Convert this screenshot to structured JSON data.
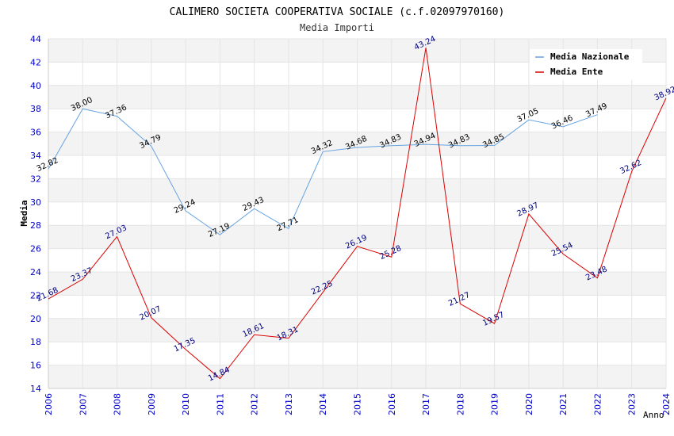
{
  "chart_data": {
    "type": "line",
    "title": "CALIMERO SOCIETA COOPERATIVA SOCIALE (c.f.02097970160)",
    "subtitle": "Media Importi",
    "xlabel": "Anno",
    "ylabel": "Media",
    "ylim": [
      14,
      44
    ],
    "yticks": [
      14,
      16,
      18,
      20,
      22,
      24,
      26,
      28,
      30,
      32,
      34,
      36,
      38,
      40,
      42,
      44
    ],
    "x": [
      "2006",
      "2007",
      "2008",
      "2009",
      "2010",
      "2011",
      "2012",
      "2013",
      "2014",
      "2015",
      "2016",
      "2017",
      "2018",
      "2019",
      "2020",
      "2021",
      "2022",
      "2023",
      "2024"
    ],
    "grid": "horizontal-bands",
    "legend_position": "top-right",
    "series": [
      {
        "name": "Media Nazionale",
        "color": "#66a3e0",
        "values": [
          32.82,
          38.0,
          37.36,
          34.79,
          29.24,
          27.19,
          29.43,
          27.71,
          34.32,
          34.68,
          34.83,
          34.94,
          34.83,
          34.85,
          37.05,
          36.46,
          37.49,
          null,
          null
        ],
        "labels": [
          "32.82",
          "38.00",
          "37.36",
          "34.79",
          "29.24",
          "27.19",
          "29.43",
          "27.71",
          "34.32",
          "34.68",
          "34.83",
          "34.94",
          "34.83",
          "34.85",
          "37.05",
          "36.46",
          "37.49",
          null,
          null
        ]
      },
      {
        "name": "Media Ente",
        "color": "#dd0000",
        "values": [
          21.68,
          23.37,
          27.03,
          20.07,
          17.35,
          14.84,
          18.61,
          18.31,
          22.25,
          26.19,
          25.28,
          43.24,
          21.27,
          19.57,
          28.97,
          25.54,
          23.48,
          32.62,
          38.92
        ],
        "labels": [
          "21.68",
          "23.37",
          "27.03",
          "20.07",
          "17.35",
          "14.84",
          "18.61",
          "18.31",
          "22.25",
          "26.19",
          "25.28",
          "43.24",
          "21.27",
          "19.57",
          "28.97",
          "25.54",
          "23.48",
          "32.62",
          "38.92"
        ]
      }
    ]
  }
}
